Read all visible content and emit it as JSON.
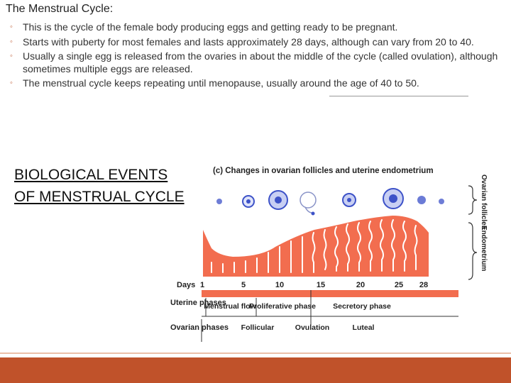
{
  "slide": {
    "title": "The Menstrual Cycle:",
    "bullets": [
      "This is the cycle of the female body producing eggs and getting ready to be pregnant.",
      "Starts with puberty for most females and lasts approximately 28 days, although can vary from 20 to 40.",
      "Usually a single egg is released from the ovaries in about the middle of the cycle (called ovulation), although sometimes multiple eggs are released.",
      "The menstrual cycle keeps repeating until menopause, usually around the age of 40 to 50."
    ],
    "heading_line1": "BIOLOGICAL EVENTS",
    "heading_line2": "OF MENSTRUAL CYCLE"
  },
  "figure": {
    "caption": "(c) Changes in ovarian follicles and uterine endometrium",
    "side_label_ovarian": "Ovarian follicles",
    "side_label_endometrium": "Endometrium",
    "days_label": "Days",
    "days": [
      "1",
      "5",
      "10",
      "15",
      "20",
      "25",
      "28"
    ],
    "uterine_phases_label": "Uterine phases",
    "uterine_phases": [
      "Menstrual flow",
      "Proliferative phase",
      "Secretory phase"
    ],
    "ovarian_phases_label": "Ovarian phases",
    "ovarian_phases": [
      "Follicular",
      "Ovulation",
      "Luteal"
    ]
  },
  "colors": {
    "accent": "#c0522a",
    "endometrium": "#f26d4f",
    "follicle": "#3d52c8"
  }
}
